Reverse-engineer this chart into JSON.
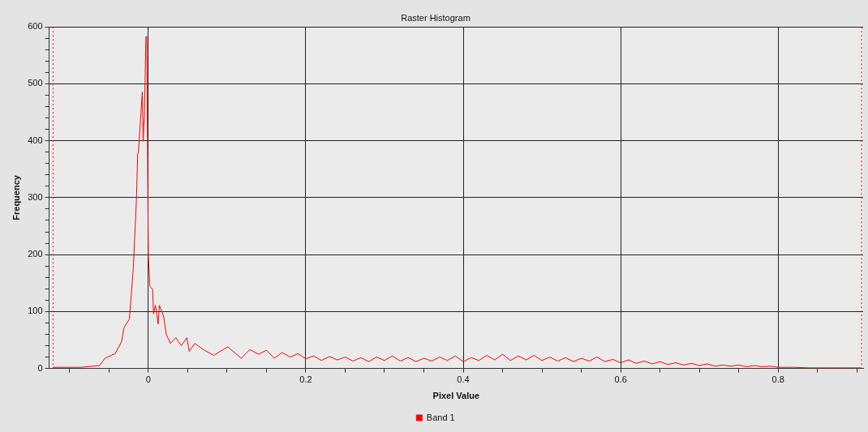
{
  "chart_data": {
    "type": "line",
    "title": "Raster Histogram",
    "xlabel": "Pixel Value",
    "ylabel": "Frequency",
    "xlim": [
      -0.126,
      0.908
    ],
    "ylim": [
      0,
      600
    ],
    "xticks": [
      {
        "value": -0.1,
        "label": null
      },
      {
        "value": -0.05,
        "label": null
      },
      0,
      {
        "value": 0.05,
        "label": null
      },
      {
        "value": 0.1,
        "label": null
      },
      {
        "value": 0.15,
        "label": null
      },
      0.2,
      {
        "value": 0.25,
        "label": null
      },
      {
        "value": 0.3,
        "label": null
      },
      {
        "value": 0.35,
        "label": null
      },
      0.4,
      {
        "value": 0.45,
        "label": null
      },
      {
        "value": 0.5,
        "label": null
      },
      {
        "value": 0.55,
        "label": null
      },
      0.6,
      {
        "value": 0.65,
        "label": null
      },
      {
        "value": 0.7,
        "label": null
      },
      {
        "value": 0.75,
        "label": null
      },
      0.8,
      {
        "value": 0.85,
        "label": null
      },
      {
        "value": 0.9,
        "label": null
      }
    ],
    "yticks": [
      0,
      {
        "value": 20,
        "label": null
      },
      {
        "value": 40,
        "label": null
      },
      {
        "value": 60,
        "label": null
      },
      {
        "value": 80,
        "label": null
      },
      100,
      {
        "value": 120,
        "label": null
      },
      {
        "value": 140,
        "label": null
      },
      {
        "value": 160,
        "label": null
      },
      {
        "value": 180,
        "label": null
      },
      200,
      {
        "value": 220,
        "label": null
      },
      {
        "value": 240,
        "label": null
      },
      {
        "value": 260,
        "label": null
      },
      {
        "value": 280,
        "label": null
      },
      300,
      {
        "value": 320,
        "label": null
      },
      {
        "value": 340,
        "label": null
      },
      {
        "value": 360,
        "label": null
      },
      {
        "value": 380,
        "label": null
      },
      400,
      {
        "value": 420,
        "label": null
      },
      {
        "value": 440,
        "label": null
      },
      {
        "value": 460,
        "label": null
      },
      {
        "value": 480,
        "label": null
      },
      500,
      {
        "value": 520,
        "label": null
      },
      {
        "value": 540,
        "label": null
      },
      {
        "value": 560,
        "label": null
      },
      {
        "value": 580,
        "label": null
      },
      600
    ],
    "grid": true,
    "legend": "bottom",
    "marker": "none",
    "line_style": "solid",
    "ref_lines": [
      {
        "axis": "x",
        "value": -0.121,
        "color": "#ff0000",
        "line_style": "dotted"
      },
      {
        "axis": "x",
        "value": 0.906,
        "color": "#ff0000",
        "line_style": "dotted"
      }
    ],
    "series": [
      {
        "name": "Band 1",
        "color": "#ff0000",
        "x": [
          -0.121,
          -0.086,
          -0.062,
          -0.055,
          -0.042,
          -0.034,
          -0.031,
          -0.024,
          -0.019,
          -0.015,
          -0.0135,
          -0.0125,
          -0.0076,
          -0.0066,
          -0.005,
          -0.003,
          -0.002,
          0.0,
          0.002,
          0.0055,
          0.0066,
          0.009,
          0.0125,
          0.014,
          0.0194,
          0.023,
          0.028,
          0.035,
          0.042,
          0.049,
          0.052,
          0.059,
          0.07,
          0.083,
          0.101,
          0.118,
          0.129,
          0.14,
          0.15,
          0.16,
          0.17,
          0.18,
          0.19,
          0.2,
          0.21,
          0.22,
          0.23,
          0.24,
          0.25,
          0.26,
          0.27,
          0.28,
          0.29,
          0.3,
          0.31,
          0.32,
          0.33,
          0.34,
          0.35,
          0.36,
          0.37,
          0.38,
          0.39,
          0.4,
          0.41,
          0.42,
          0.43,
          0.44,
          0.45,
          0.46,
          0.47,
          0.48,
          0.49,
          0.5,
          0.51,
          0.52,
          0.53,
          0.54,
          0.55,
          0.56,
          0.57,
          0.58,
          0.59,
          0.6,
          0.61,
          0.62,
          0.63,
          0.64,
          0.65,
          0.66,
          0.67,
          0.68,
          0.69,
          0.7,
          0.71,
          0.72,
          0.73,
          0.74,
          0.75,
          0.76,
          0.77,
          0.78,
          0.79,
          0.8,
          0.82,
          0.84,
          0.86,
          0.88,
          0.905
        ],
        "values": [
          2,
          2,
          5,
          18,
          26,
          47,
          71,
          87,
          177,
          300,
          376,
          381,
          486,
          399,
          442,
          583,
          583,
          200,
          144,
          139,
          96,
          111,
          78,
          111,
          92,
          59,
          44,
          54,
          40,
          54,
          30,
          44,
          33,
          23,
          38,
          18,
          33,
          25,
          32,
          18,
          28,
          20,
          26,
          17,
          22,
          14,
          21,
          15,
          20,
          13,
          19,
          12,
          20,
          14,
          22,
          13,
          19,
          12,
          18,
          13,
          20,
          14,
          22,
          12,
          19,
          14,
          23,
          15,
          25,
          14,
          22,
          15,
          23,
          14,
          20,
          13,
          19,
          12,
          18,
          13,
          20,
          12,
          16,
          10,
          15,
          9,
          13,
          8,
          12,
          7,
          10,
          6,
          9,
          5,
          8,
          4,
          6,
          4,
          6,
          3,
          5,
          3,
          4,
          2,
          2,
          1,
          1,
          1,
          1
        ]
      }
    ]
  }
}
